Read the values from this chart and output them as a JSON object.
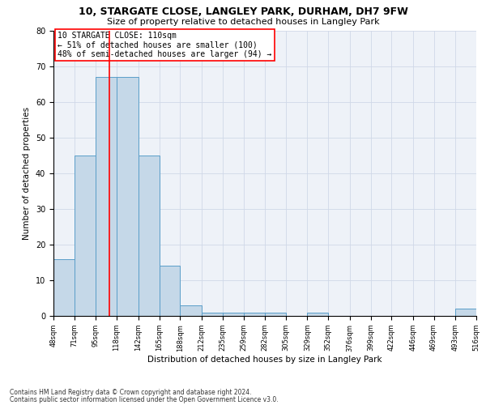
{
  "title": "10, STARGATE CLOSE, LANGLEY PARK, DURHAM, DH7 9FW",
  "subtitle": "Size of property relative to detached houses in Langley Park",
  "xlabel": "Distribution of detached houses by size in Langley Park",
  "ylabel": "Number of detached properties",
  "footnote1": "Contains HM Land Registry data © Crown copyright and database right 2024.",
  "footnote2": "Contains public sector information licensed under the Open Government Licence v3.0.",
  "annotation_line1": "10 STARGATE CLOSE: 110sqm",
  "annotation_line2": "← 51% of detached houses are smaller (100)",
  "annotation_line3": "48% of semi-detached houses are larger (94) →",
  "bar_color": "#c5d8e8",
  "bar_edge_color": "#5a9ec9",
  "red_line_x": 110,
  "bin_edges": [
    48,
    71,
    95,
    118,
    142,
    165,
    188,
    212,
    235,
    259,
    282,
    305,
    329,
    352,
    376,
    399,
    422,
    446,
    469,
    493,
    516
  ],
  "bar_heights": [
    16,
    45,
    67,
    67,
    45,
    14,
    3,
    1,
    1,
    1,
    1,
    0,
    1,
    0,
    0,
    0,
    0,
    0,
    0,
    2
  ],
  "ylim": [
    0,
    80
  ],
  "yticks": [
    0,
    10,
    20,
    30,
    40,
    50,
    60,
    70,
    80
  ],
  "grid_color": "#d0d8e8",
  "background_color": "#eef2f8",
  "title_fontsize": 9,
  "subtitle_fontsize": 8,
  "ylabel_fontsize": 7.5,
  "xtick_fontsize": 6,
  "ytick_fontsize": 7,
  "annotation_fontsize": 7,
  "xlabel_fontsize": 7.5,
  "footnote_fontsize": 5.5
}
